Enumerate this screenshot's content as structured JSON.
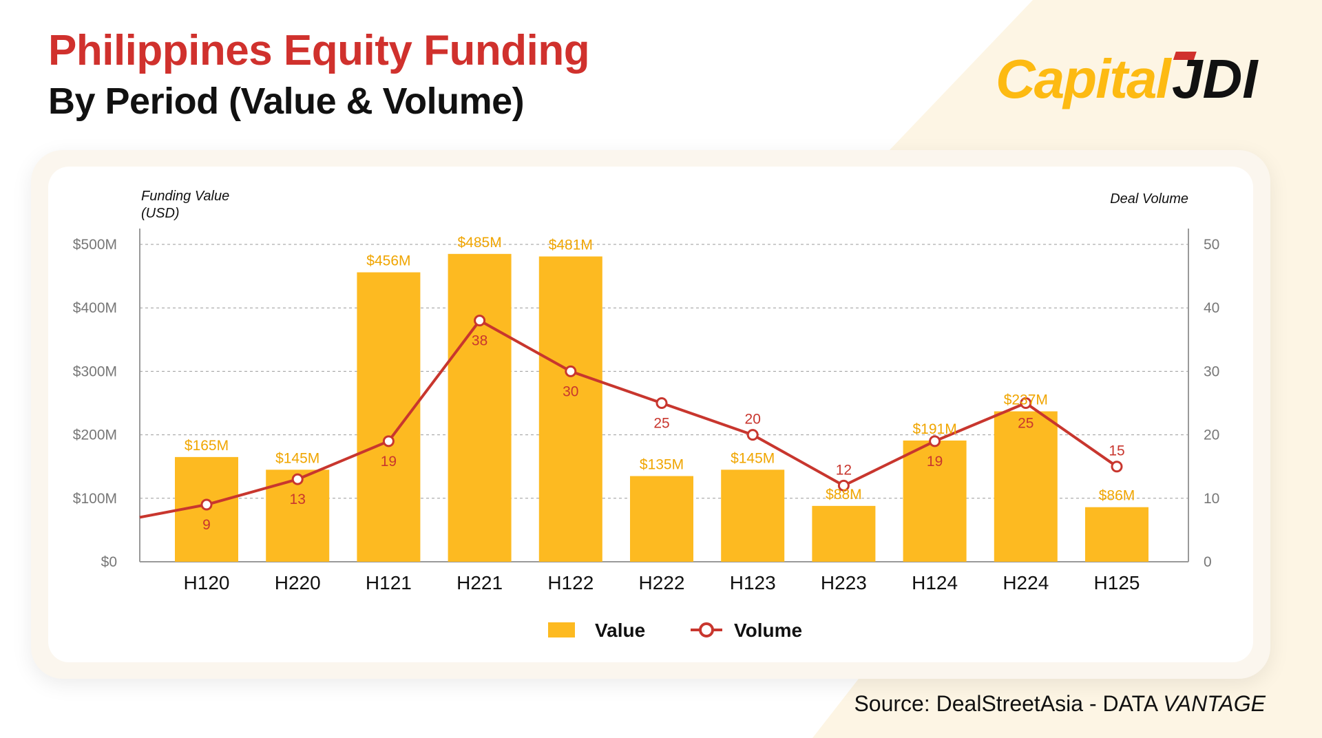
{
  "header": {
    "title": "Philippines Equity Funding",
    "subtitle": "By Period (Value & Volume)"
  },
  "logo": {
    "text": "Capital JDI"
  },
  "source": {
    "prefix": "Source: DealStreetAsia - DATA ",
    "emphasis": "VANTAGE"
  },
  "colors": {
    "bar": "#FDBA21",
    "line": "#C8362E",
    "title": "#D0312D",
    "bar_label": "#F0A500",
    "background": "#FDF5E4"
  },
  "chart_data": {
    "type": "bar+line",
    "categories": [
      "H120",
      "H220",
      "H121",
      "H221",
      "H122",
      "H222",
      "H123",
      "H223",
      "H124",
      "H224",
      "H125"
    ],
    "series": [
      {
        "name": "Value",
        "type": "bar",
        "axis": "left",
        "values": [
          165,
          145,
          456,
          485,
          481,
          135,
          145,
          88,
          191,
          237,
          86
        ],
        "labels": [
          "$165M",
          "$145M",
          "$456M",
          "$485M",
          "$481M",
          "$135M",
          "$145M",
          "$88M",
          "$191M",
          "$237M",
          "$86M"
        ]
      },
      {
        "name": "Volume",
        "type": "line",
        "axis": "right",
        "values": [
          9,
          13,
          19,
          38,
          30,
          25,
          20,
          12,
          19,
          25,
          15
        ]
      }
    ],
    "ylabel_left": "Funding Value",
    "ylabel_left_unit": "(USD)",
    "ylabel_right": "Deal Volume",
    "ylim_left": [
      0,
      500
    ],
    "ylim_right": [
      0,
      50
    ],
    "left_ticks": [
      "$0",
      "$100M",
      "$200M",
      "$300M",
      "$400M",
      "$500M"
    ],
    "right_ticks": [
      "0",
      "10",
      "20",
      "30",
      "40",
      "50"
    ],
    "grid": true,
    "legend": {
      "position": "bottom",
      "entries": [
        "Value",
        "Volume"
      ]
    }
  }
}
